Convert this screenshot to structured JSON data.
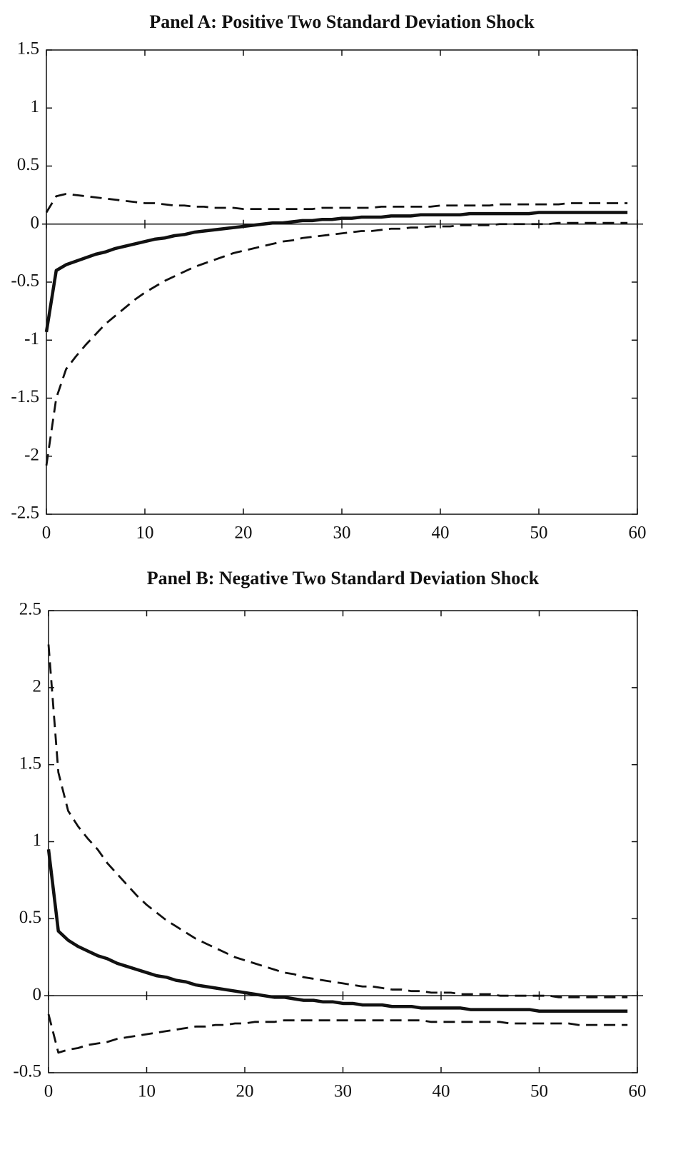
{
  "chart_data": [
    {
      "type": "line",
      "title": "Panel A: Positive Two Standard Deviation Shock",
      "x": [
        0,
        1,
        2,
        3,
        4,
        5,
        6,
        7,
        8,
        9,
        10,
        11,
        12,
        13,
        14,
        15,
        16,
        17,
        18,
        19,
        20,
        21,
        22,
        23,
        24,
        25,
        26,
        27,
        28,
        29,
        30,
        31,
        32,
        33,
        34,
        35,
        36,
        37,
        38,
        39,
        40,
        41,
        42,
        43,
        44,
        45,
        46,
        47,
        48,
        49,
        50,
        51,
        52,
        53,
        54,
        55,
        56,
        57,
        58,
        59
      ],
      "series": [
        {
          "color": "#111111",
          "style": "solid",
          "values": [
            -0.93,
            -0.4,
            -0.35,
            -0.32,
            -0.29,
            -0.26,
            -0.24,
            -0.21,
            -0.19,
            -0.17,
            -0.15,
            -0.13,
            -0.12,
            -0.1,
            -0.09,
            -0.07,
            -0.06,
            -0.05,
            -0.04,
            -0.03,
            -0.02,
            -0.01,
            0,
            0.01,
            0.01,
            0.02,
            0.03,
            0.03,
            0.04,
            0.04,
            0.05,
            0.05,
            0.06,
            0.06,
            0.06,
            0.07,
            0.07,
            0.07,
            0.08,
            0.08,
            0.08,
            0.08,
            0.08,
            0.09,
            0.09,
            0.09,
            0.09,
            0.09,
            0.09,
            0.09,
            0.1,
            0.1,
            0.1,
            0.1,
            0.1,
            0.1,
            0.1,
            0.1,
            0.1,
            0.1
          ]
        },
        {
          "color": "#111111",
          "style": "dashed",
          "values": [
            0.1,
            0.24,
            0.26,
            0.25,
            0.24,
            0.23,
            0.22,
            0.21,
            0.2,
            0.19,
            0.18,
            0.18,
            0.17,
            0.16,
            0.16,
            0.15,
            0.15,
            0.14,
            0.14,
            0.14,
            0.13,
            0.13,
            0.13,
            0.13,
            0.13,
            0.13,
            0.13,
            0.13,
            0.14,
            0.14,
            0.14,
            0.14,
            0.14,
            0.14,
            0.15,
            0.15,
            0.15,
            0.15,
            0.15,
            0.15,
            0.16,
            0.16,
            0.16,
            0.16,
            0.16,
            0.16,
            0.17,
            0.17,
            0.17,
            0.17,
            0.17,
            0.17,
            0.17,
            0.18,
            0.18,
            0.18,
            0.18,
            0.18,
            0.18,
            0.18
          ]
        },
        {
          "color": "#111111",
          "style": "dashed",
          "values": [
            -2.08,
            -1.5,
            -1.25,
            -1.14,
            -1.04,
            -0.95,
            -0.86,
            -0.79,
            -0.72,
            -0.65,
            -0.59,
            -0.54,
            -0.49,
            -0.45,
            -0.41,
            -0.37,
            -0.34,
            -0.31,
            -0.28,
            -0.25,
            -0.23,
            -0.21,
            -0.19,
            -0.17,
            -0.15,
            -0.14,
            -0.12,
            -0.11,
            -0.1,
            -0.09,
            -0.08,
            -0.07,
            -0.06,
            -0.06,
            -0.05,
            -0.04,
            -0.04,
            -0.03,
            -0.03,
            -0.02,
            -0.02,
            -0.02,
            -0.01,
            -0.01,
            -0.01,
            -0.01,
            0,
            0,
            0,
            0,
            0,
            0,
            0.01,
            0.01,
            0.01,
            0.01,
            0.01,
            0.01,
            0.01,
            0.01
          ]
        }
      ],
      "xlim": [
        0,
        60
      ],
      "xticks": [
        0,
        10,
        20,
        30,
        40,
        50,
        60
      ],
      "ylim": [
        -2.5,
        1.5
      ],
      "yticks": [
        -2.5,
        -2,
        -1.5,
        -1,
        -0.5,
        0,
        0.5,
        1,
        1.5
      ]
    },
    {
      "type": "line",
      "title": "Panel B: Negative Two Standard Deviation Shock",
      "x": [
        0,
        1,
        2,
        3,
        4,
        5,
        6,
        7,
        8,
        9,
        10,
        11,
        12,
        13,
        14,
        15,
        16,
        17,
        18,
        19,
        20,
        21,
        22,
        23,
        24,
        25,
        26,
        27,
        28,
        29,
        30,
        31,
        32,
        33,
        34,
        35,
        36,
        37,
        38,
        39,
        40,
        41,
        42,
        43,
        44,
        45,
        46,
        47,
        48,
        49,
        50,
        51,
        52,
        53,
        54,
        55,
        56,
        57,
        58,
        59
      ],
      "series": [
        {
          "color": "#111111",
          "style": "solid",
          "values": [
            0.95,
            0.42,
            0.36,
            0.32,
            0.29,
            0.26,
            0.24,
            0.21,
            0.19,
            0.17,
            0.15,
            0.13,
            0.12,
            0.1,
            0.09,
            0.07,
            0.06,
            0.05,
            0.04,
            0.03,
            0.02,
            0.01,
            0,
            -0.01,
            -0.01,
            -0.02,
            -0.03,
            -0.03,
            -0.04,
            -0.04,
            -0.05,
            -0.05,
            -0.06,
            -0.06,
            -0.06,
            -0.07,
            -0.07,
            -0.07,
            -0.08,
            -0.08,
            -0.08,
            -0.08,
            -0.08,
            -0.09,
            -0.09,
            -0.09,
            -0.09,
            -0.09,
            -0.09,
            -0.09,
            -0.1,
            -0.1,
            -0.1,
            -0.1,
            -0.1,
            -0.1,
            -0.1,
            -0.1,
            -0.1,
            -0.1
          ]
        },
        {
          "color": "#111111",
          "style": "dashed",
          "values": [
            2.28,
            1.45,
            1.2,
            1.1,
            1.02,
            0.95,
            0.86,
            0.79,
            0.72,
            0.65,
            0.59,
            0.54,
            0.49,
            0.45,
            0.41,
            0.37,
            0.34,
            0.31,
            0.28,
            0.25,
            0.23,
            0.21,
            0.19,
            0.17,
            0.15,
            0.14,
            0.12,
            0.11,
            0.1,
            0.09,
            0.08,
            0.07,
            0.06,
            0.06,
            0.05,
            0.04,
            0.04,
            0.03,
            0.03,
            0.02,
            0.02,
            0.02,
            0.01,
            0.01,
            0.01,
            0.01,
            0,
            0,
            0,
            0,
            0,
            0,
            -0.01,
            -0.01,
            -0.01,
            -0.01,
            -0.01,
            -0.01,
            -0.01,
            -0.01
          ]
        },
        {
          "color": "#111111",
          "style": "dashed",
          "values": [
            -0.12,
            -0.37,
            -0.35,
            -0.34,
            -0.32,
            -0.31,
            -0.3,
            -0.28,
            -0.27,
            -0.26,
            -0.25,
            -0.24,
            -0.23,
            -0.22,
            -0.21,
            -0.2,
            -0.2,
            -0.19,
            -0.19,
            -0.18,
            -0.18,
            -0.17,
            -0.17,
            -0.17,
            -0.16,
            -0.16,
            -0.16,
            -0.16,
            -0.16,
            -0.16,
            -0.16,
            -0.16,
            -0.16,
            -0.16,
            -0.16,
            -0.16,
            -0.16,
            -0.16,
            -0.16,
            -0.17,
            -0.17,
            -0.17,
            -0.17,
            -0.17,
            -0.17,
            -0.17,
            -0.17,
            -0.18,
            -0.18,
            -0.18,
            -0.18,
            -0.18,
            -0.18,
            -0.18,
            -0.19,
            -0.19,
            -0.19,
            -0.19,
            -0.19,
            -0.19
          ]
        }
      ],
      "xlim": [
        0,
        60
      ],
      "xticks": [
        0,
        10,
        20,
        30,
        40,
        50,
        60
      ],
      "ylim": [
        -0.5,
        2.5
      ],
      "yticks": [
        -0.5,
        0,
        0.5,
        1,
        1.5,
        2,
        2.5
      ]
    }
  ]
}
